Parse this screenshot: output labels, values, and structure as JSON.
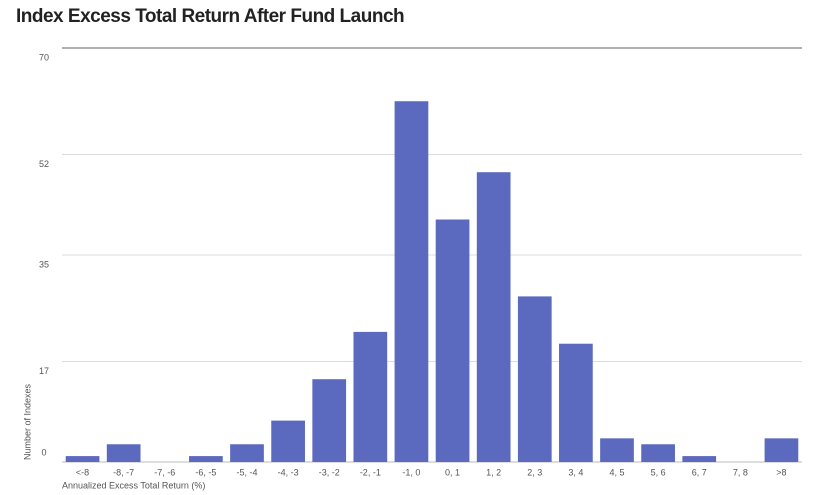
{
  "chart_data": {
    "type": "bar",
    "title": "Index Excess Total Return After Fund Launch",
    "x_label": "Annualized Excess Total Return (%)",
    "y_label": "Number of Indexes",
    "categories": [
      "<-8",
      "-8, -7",
      "-7, -6",
      "-6, -5",
      "-5, -4",
      "-4, -3",
      "-3, -2",
      "-2, -1",
      "-1, 0",
      "0, 1",
      "1, 2",
      "2, 3",
      "3, 4",
      "4, 5",
      "5, 6",
      "6, 7",
      "7, 8",
      ">8"
    ],
    "values": [
      1,
      3,
      0,
      1,
      3,
      7,
      14,
      22,
      61,
      41,
      49,
      28,
      20,
      4,
      3,
      1,
      0,
      4
    ],
    "color": "#5b6abf",
    "ylim": [
      0,
      70
    ],
    "yticks": [
      0,
      17,
      35,
      52,
      70
    ],
    "grid": true
  }
}
